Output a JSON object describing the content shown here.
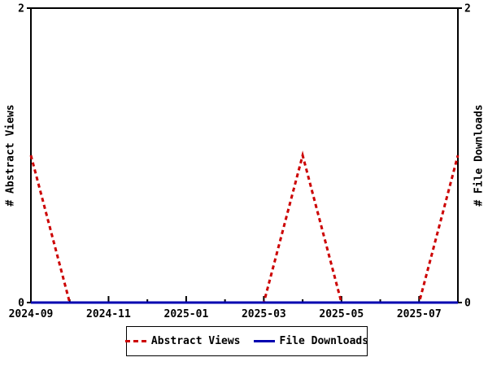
{
  "chart_data": {
    "type": "line",
    "ylabel": "# Abstract Views",
    "y2label": "# File Downloads",
    "x": [
      "2024-09",
      "2024-10",
      "2024-11",
      "2024-12",
      "2025-01",
      "2025-02",
      "2025-03",
      "2025-04",
      "2025-05",
      "2025-06",
      "2025-07",
      "2025-08"
    ],
    "x_tick_labels": [
      "2024-09",
      "2024-11",
      "2025-01",
      "2025-03",
      "2025-05",
      "2025-07"
    ],
    "y_ticks": [
      0,
      2
    ],
    "ylim": [
      0,
      2
    ],
    "grid": false,
    "legend_position": "bottom-center",
    "background": "#ffffff",
    "axis_color": "#000000",
    "series": [
      {
        "name": "Abstract Views",
        "color": "#cc0000",
        "dash": "dashed",
        "width": 3,
        "values": [
          1,
          0,
          0,
          0,
          0,
          0,
          0,
          1,
          0,
          0,
          0,
          1
        ]
      },
      {
        "name": "File Downloads",
        "color": "#0000b0",
        "dash": "solid",
        "width": 3,
        "values": [
          0,
          0,
          0,
          0,
          0,
          0,
          0,
          0,
          0,
          0,
          0,
          0
        ]
      }
    ]
  }
}
